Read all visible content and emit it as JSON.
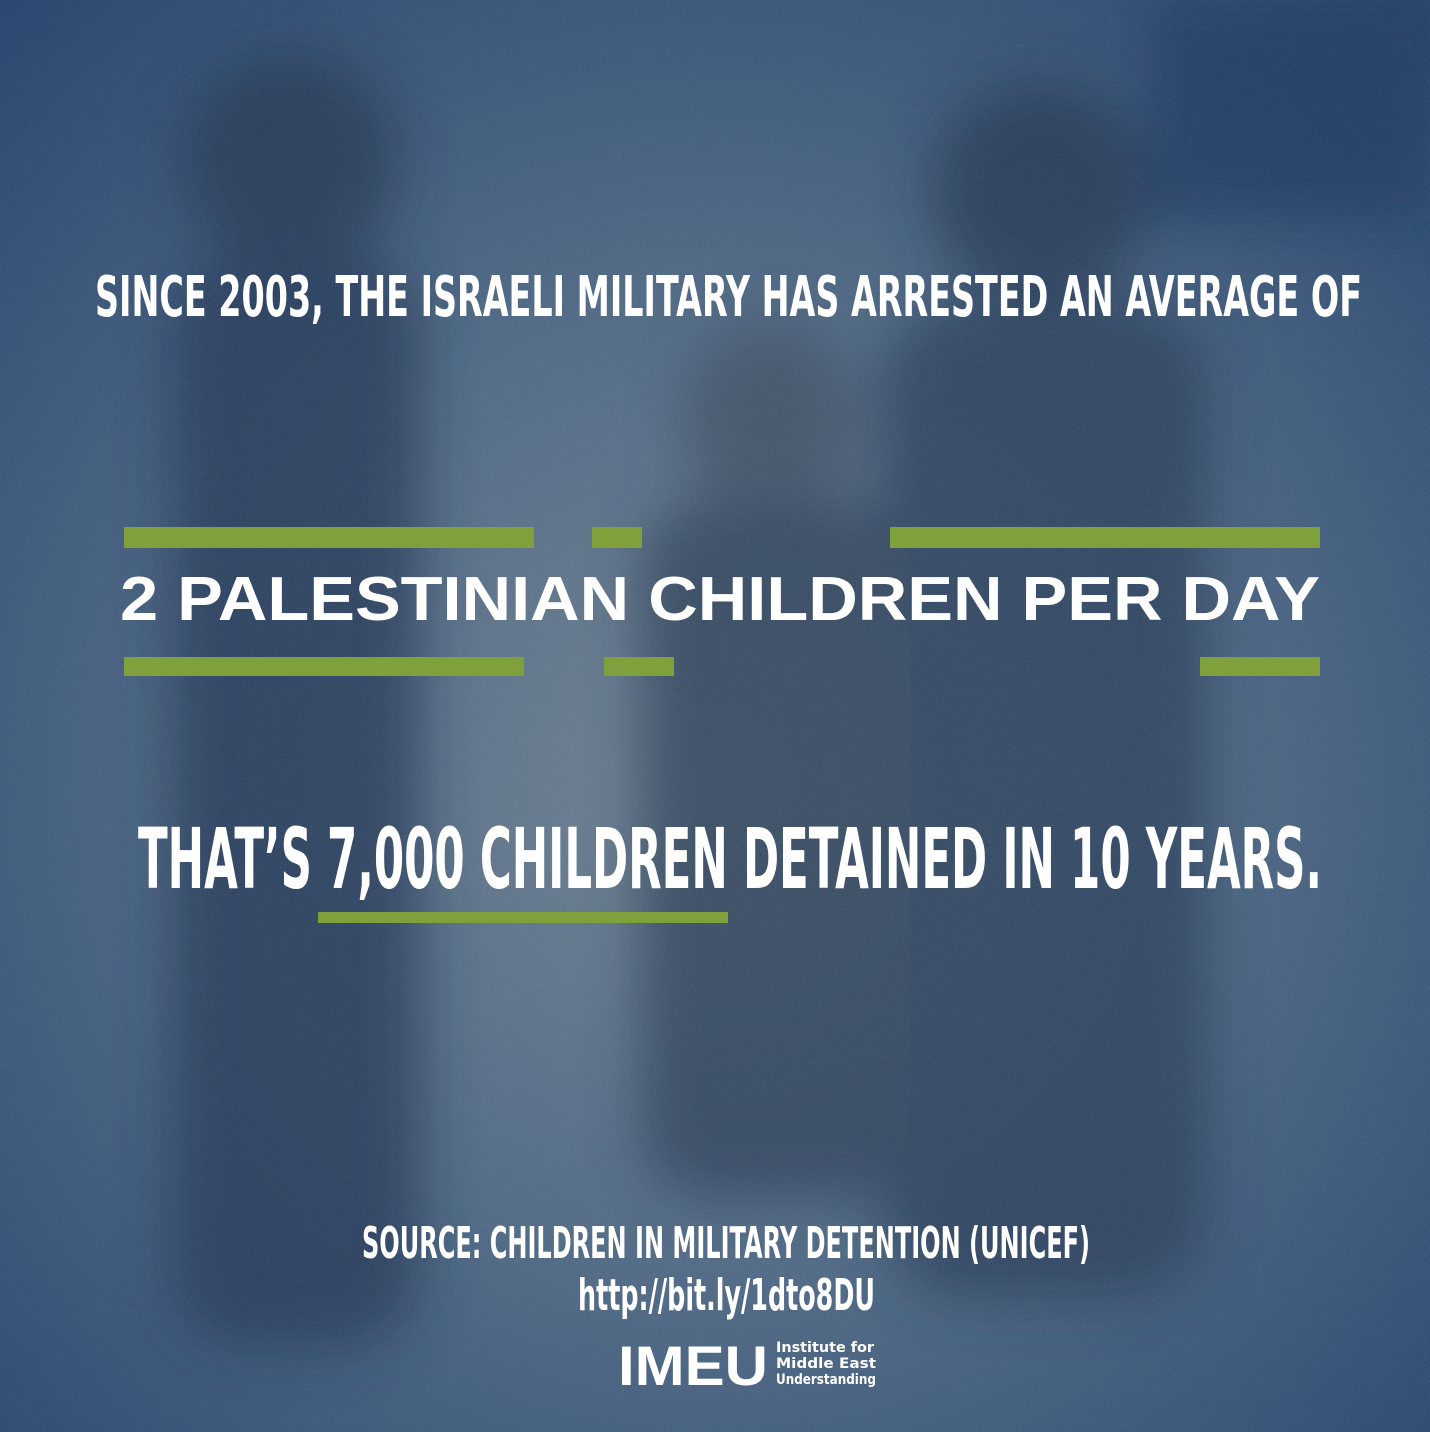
{
  "headline": "SINCE 2003, THE ISRAELI MILITARY HAS ARRESTED AN AVERAGE OF",
  "highlight": "2 PALESTINIAN CHILDREN PER DAY",
  "statement": "THAT’S 7,000 CHILDREN DETAINED IN 10 YEARS.",
  "source": {
    "citation": "SOURCE: CHILDREN IN MILITARY DETENTION (UNICEF)",
    "url": "http://bit.ly/1dto8DU"
  },
  "logo": {
    "name": "IMEU",
    "tagline": [
      "Institute for",
      "Middle East",
      "Understanding"
    ]
  }
}
